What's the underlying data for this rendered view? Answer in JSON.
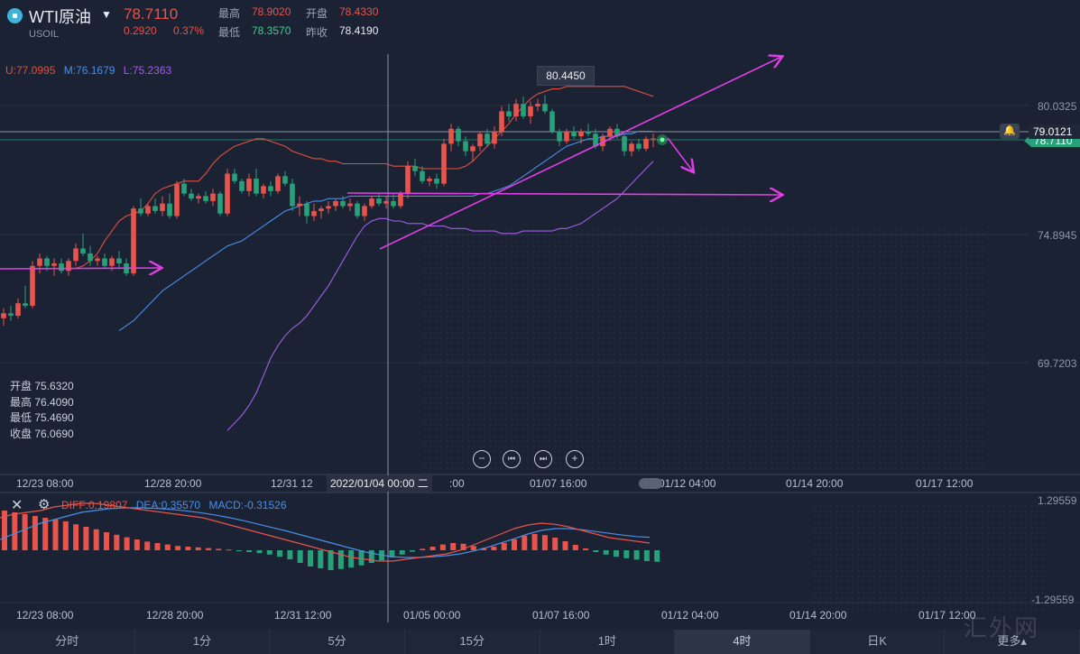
{
  "header": {
    "symbol_name": "WTI原油",
    "symbol_code": "USOIL",
    "price": "78.7110",
    "change": "0.2920",
    "change_pct": "0.37%",
    "high_label": "最高",
    "high_value": "78.9020",
    "open_label": "开盘",
    "open_value": "78.4330",
    "low_label": "最低",
    "low_value": "78.3570",
    "prev_close_label": "昨收",
    "prev_close_value": "78.4190"
  },
  "bollinger": {
    "upper": "U:77.0995",
    "middle": "M:76.1679",
    "lower": "L:75.2363"
  },
  "ohlc_box": {
    "open": "开盘 75.6320",
    "high": "最高 76.4090",
    "low": "最低 75.4690",
    "close": "收盘 76.0690"
  },
  "price_axis": [
    "80.0325",
    "74.8945",
    "69.7203"
  ],
  "current_price_tag": "79.0121",
  "last_price_tag": "78.7110",
  "tooltip_value": "80.4450",
  "crosshair_time": "2022/01/04 00:00 二",
  "time_axis_main": [
    "12/23 08:00",
    "12/28 20:00",
    "12/31 12",
    ":00",
    "01/07 16:00",
    "01/12 04:00",
    "01/14 20:00",
    "01/17 12:00"
  ],
  "time_axis_macd": [
    "12/23 08:00",
    "12/28 20:00",
    "12/31 12:00",
    "01/05 00:00",
    "01/07 16:00",
    "01/12 04:00",
    "01/14 20:00",
    "01/17 12:00"
  ],
  "macd": {
    "diff": "DIFF:0.19807",
    "dea": "DEA:0.35570",
    "macd": "MACD:-0.31526",
    "axis_top": "1.29559",
    "axis_bottom": "-1.29559"
  },
  "controls": {
    "zoom_out": "−",
    "prev": "⏮",
    "next": "⏭",
    "zoom_in": "+"
  },
  "tabs": [
    {
      "label": "分时",
      "active": false
    },
    {
      "label": "1分",
      "active": false
    },
    {
      "label": "5分",
      "active": false
    },
    {
      "label": "15分",
      "active": false
    },
    {
      "label": "1时",
      "active": false
    },
    {
      "label": "4时",
      "active": true
    },
    {
      "label": "日K",
      "active": false
    },
    {
      "label": "更多▴",
      "active": false
    }
  ],
  "watermark": "汇外网",
  "colors": {
    "up": "#e8544b",
    "down": "#26a17a",
    "upper_band": "#e0503f",
    "middle_band": "#4a8fe7",
    "lower_band": "#a25ee6",
    "annotation": "#e23ee6"
  },
  "chart_data": {
    "type": "candlestick",
    "interval": "4时",
    "candles_ohlc": [
      [
        71.5,
        71.9,
        71.2,
        71.7
      ],
      [
        71.7,
        72.0,
        71.4,
        71.6
      ],
      [
        71.6,
        72.3,
        71.5,
        72.1
      ],
      [
        72.1,
        72.8,
        71.9,
        72.0
      ],
      [
        72.0,
        73.8,
        71.9,
        73.6
      ],
      [
        73.6,
        74.1,
        73.3,
        73.9
      ],
      [
        73.9,
        74.0,
        73.4,
        73.6
      ],
      [
        73.6,
        73.9,
        73.2,
        73.7
      ],
      [
        73.7,
        73.9,
        73.3,
        73.4
      ],
      [
        73.4,
        73.9,
        73.2,
        73.8
      ],
      [
        73.8,
        74.5,
        73.6,
        74.3
      ],
      [
        74.3,
        74.9,
        74.0,
        74.1
      ],
      [
        74.1,
        74.4,
        73.6,
        73.8
      ],
      [
        73.8,
        74.0,
        73.6,
        73.9
      ],
      [
        73.9,
        74.1,
        73.5,
        73.6
      ],
      [
        73.6,
        74.0,
        73.4,
        73.9
      ],
      [
        73.9,
        74.2,
        73.5,
        73.7
      ],
      [
        73.7,
        73.9,
        73.2,
        73.3
      ],
      [
        73.3,
        76.0,
        73.2,
        75.9
      ],
      [
        75.9,
        76.3,
        75.6,
        75.7
      ],
      [
        75.7,
        76.1,
        75.6,
        76.0
      ],
      [
        76.0,
        76.3,
        75.7,
        75.8
      ],
      [
        75.8,
        76.4,
        75.6,
        76.1
      ],
      [
        76.1,
        76.5,
        75.5,
        75.6
      ],
      [
        75.6,
        77.0,
        75.5,
        76.9
      ],
      [
        76.9,
        77.1,
        76.4,
        76.5
      ],
      [
        76.5,
        76.7,
        76.2,
        76.3
      ],
      [
        76.3,
        76.5,
        76.1,
        76.4
      ],
      [
        76.4,
        76.6,
        76.1,
        76.2
      ],
      [
        76.2,
        76.7,
        76.0,
        76.5
      ],
      [
        76.5,
        76.6,
        75.6,
        75.7
      ],
      [
        75.7,
        77.5,
        75.6,
        77.3
      ],
      [
        77.3,
        77.5,
        76.9,
        77.0
      ],
      [
        77.0,
        77.1,
        76.5,
        76.6
      ],
      [
        76.6,
        77.3,
        76.4,
        77.1
      ],
      [
        77.1,
        77.5,
        76.4,
        76.5
      ],
      [
        76.5,
        76.9,
        76.3,
        76.8
      ],
      [
        76.8,
        77.0,
        76.4,
        76.6
      ],
      [
        76.6,
        77.3,
        76.5,
        77.2
      ],
      [
        77.2,
        77.4,
        76.8,
        76.9
      ],
      [
        76.9,
        77.1,
        75.8,
        76.0
      ],
      [
        76.0,
        76.4,
        75.6,
        76.1
      ],
      [
        76.1,
        76.2,
        75.3,
        75.6
      ],
      [
        75.6,
        76.1,
        75.4,
        75.8
      ],
      [
        75.8,
        76.0,
        75.5,
        75.9
      ],
      [
        75.9,
        76.2,
        75.7,
        76.0
      ],
      [
        76.0,
        76.3,
        75.8,
        76.2
      ],
      [
        76.2,
        76.4,
        75.9,
        76.0
      ],
      [
        76.0,
        76.3,
        75.8,
        76.1
      ],
      [
        76.1,
        76.2,
        75.5,
        75.6
      ],
      [
        75.6,
        76.1,
        75.4,
        76.0
      ],
      [
        76.0,
        76.4,
        75.9,
        76.3
      ],
      [
        76.3,
        76.5,
        76.0,
        76.1
      ],
      [
        76.1,
        76.4,
        75.9,
        76.2
      ],
      [
        76.2,
        76.5,
        75.9,
        76.0
      ],
      [
        76.0,
        76.6,
        75.9,
        76.5
      ],
      [
        76.5,
        77.8,
        76.3,
        77.6
      ],
      [
        77.6,
        77.9,
        77.2,
        77.4
      ],
      [
        77.4,
        77.6,
        76.9,
        77.0
      ],
      [
        77.0,
        77.2,
        76.8,
        77.1
      ],
      [
        77.1,
        77.3,
        76.7,
        76.9
      ],
      [
        76.9,
        78.7,
        76.8,
        78.5
      ],
      [
        78.5,
        79.3,
        78.2,
        79.1
      ],
      [
        79.1,
        79.2,
        78.4,
        78.6
      ],
      [
        78.6,
        78.8,
        78.0,
        78.2
      ],
      [
        78.2,
        78.5,
        77.8,
        78.4
      ],
      [
        78.4,
        79.0,
        78.2,
        78.9
      ],
      [
        78.9,
        79.1,
        78.4,
        78.5
      ],
      [
        78.5,
        79.2,
        78.3,
        79.0
      ],
      [
        79.0,
        80.0,
        78.8,
        79.8
      ],
      [
        79.8,
        80.1,
        79.4,
        79.6
      ],
      [
        79.6,
        80.3,
        79.4,
        80.1
      ],
      [
        80.1,
        80.4,
        79.5,
        79.6
      ],
      [
        79.6,
        80.2,
        79.3,
        80.0
      ],
      [
        80.0,
        80.3,
        79.8,
        80.1
      ],
      [
        80.1,
        80.45,
        79.7,
        79.8
      ],
      [
        79.8,
        79.9,
        78.9,
        79.0
      ],
      [
        79.0,
        79.1,
        78.4,
        78.6
      ],
      [
        78.6,
        79.1,
        78.5,
        79.0
      ],
      [
        79.0,
        79.2,
        78.7,
        78.8
      ],
      [
        78.8,
        79.1,
        78.5,
        79.0
      ],
      [
        79.0,
        79.3,
        78.8,
        78.9
      ],
      [
        78.9,
        79.1,
        78.3,
        78.4
      ],
      [
        78.4,
        78.9,
        78.2,
        78.8
      ],
      [
        78.8,
        79.2,
        78.6,
        79.1
      ],
      [
        79.1,
        79.3,
        78.7,
        78.8
      ],
      [
        78.8,
        78.9,
        78.0,
        78.2
      ],
      [
        78.2,
        78.6,
        78.0,
        78.5
      ],
      [
        78.5,
        78.7,
        78.2,
        78.3
      ],
      [
        78.3,
        78.8,
        78.2,
        78.7
      ],
      [
        78.7,
        78.9,
        78.36,
        78.71
      ]
    ],
    "upper_band": [
      73.5,
      73.6,
      73.8,
      74.1,
      74.6,
      75.0,
      75.4,
      75.6,
      75.7,
      75.8,
      76.1,
      76.5,
      76.7,
      76.8,
      76.9,
      77.0,
      77.0,
      77.0,
      77.3,
      77.7,
      78.0,
      78.2,
      78.4,
      78.5,
      78.6,
      78.7,
      78.7,
      78.6,
      78.5,
      78.4,
      78.2,
      78.1,
      78.0,
      77.9,
      77.9,
      77.8,
      77.8,
      77.7,
      77.7,
      77.7,
      77.7,
      77.7,
      77.7,
      77.7,
      77.6,
      77.6,
      77.6,
      77.6,
      77.5,
      77.5,
      77.5,
      77.5,
      77.5,
      77.5,
      77.6,
      77.8,
      78.1,
      78.4,
      78.7,
      79.0,
      79.3,
      79.7,
      80.0,
      80.3,
      80.5,
      80.6,
      80.7,
      80.7,
      80.8,
      80.8,
      80.8,
      80.8,
      80.8,
      80.8,
      80.8,
      80.8,
      80.8,
      80.7,
      80.6,
      80.5,
      80.4
    ],
    "middle_band": [
      71.0,
      71.2,
      71.4,
      71.7,
      72.0,
      72.3,
      72.6,
      72.8,
      73.0,
      73.2,
      73.4,
      73.6,
      73.8,
      74.0,
      74.2,
      74.4,
      74.5,
      74.6,
      74.8,
      75.0,
      75.2,
      75.4,
      75.6,
      75.8,
      75.9,
      76.0,
      76.1,
      76.2,
      76.2,
      76.3,
      76.3,
      76.3,
      76.4,
      76.4,
      76.4,
      76.4,
      76.4,
      76.4,
      76.4,
      76.4,
      76.4,
      76.4,
      76.4,
      76.4,
      76.4,
      76.4,
      76.4,
      76.4,
      76.4,
      76.4,
      76.5,
      76.5,
      76.6,
      76.7,
      76.8,
      77.0,
      77.2,
      77.4,
      77.6,
      77.8,
      78.0,
      78.2,
      78.4,
      78.5,
      78.6,
      78.7,
      78.7,
      78.8,
      78.8,
      78.8,
      78.9,
      78.9,
      79.0,
      79.0,
      79.0
    ],
    "lower_band": [
      67.0,
      67.3,
      67.6,
      68.0,
      68.5,
      69.2,
      69.9,
      70.4,
      70.8,
      71.1,
      71.3,
      71.6,
      72.0,
      72.4,
      72.8,
      73.3,
      73.8,
      74.3,
      74.8,
      75.2,
      75.4,
      75.5,
      75.5,
      75.4,
      75.4,
      75.3,
      75.3,
      75.3,
      75.2,
      75.2,
      75.2,
      75.1,
      75.1,
      75.1,
      75.0,
      75.0,
      75.0,
      75.0,
      74.9,
      74.9,
      74.9,
      75.0,
      75.0,
      75.0,
      75.0,
      75.0,
      75.1,
      75.1,
      75.2,
      75.3,
      75.5,
      75.7,
      75.9,
      76.1,
      76.3,
      76.6,
      76.9,
      77.2,
      77.5,
      77.8
    ],
    "diff": [
      0.9,
      1.0,
      1.05,
      1.1,
      1.2,
      1.25,
      1.3,
      1.3,
      1.25,
      1.2,
      1.15,
      1.1,
      1.05,
      1.0,
      0.95,
      0.9,
      0.8,
      0.7,
      0.6,
      0.5,
      0.4,
      0.3,
      0.2,
      0.1,
      0.0,
      -0.1,
      -0.2,
      -0.25,
      -0.3,
      -0.3,
      -0.25,
      -0.2,
      -0.15,
      -0.1,
      0.0,
      0.15,
      0.3,
      0.45,
      0.6,
      0.7,
      0.75,
      0.72,
      0.65,
      0.55,
      0.45,
      0.35,
      0.3,
      0.25,
      0.2
    ],
    "dea": [
      0.3,
      0.45,
      0.6,
      0.75,
      0.85,
      0.95,
      1.05,
      1.1,
      1.15,
      1.17,
      1.18,
      1.17,
      1.15,
      1.12,
      1.08,
      1.03,
      0.97,
      0.9,
      0.82,
      0.73,
      0.64,
      0.55,
      0.45,
      0.35,
      0.25,
      0.15,
      0.05,
      -0.05,
      -0.12,
      -0.18,
      -0.2,
      -0.2,
      -0.18,
      -0.15,
      -0.1,
      -0.02,
      0.08,
      0.2,
      0.32,
      0.45,
      0.55,
      0.6,
      0.6,
      0.57,
      0.52,
      0.47,
      0.42,
      0.38,
      0.36
    ],
    "macd_hist": [
      1.1,
      1.05,
      1.0,
      0.95,
      0.9,
      0.85,
      0.8,
      0.72,
      0.65,
      0.58,
      0.5,
      0.43,
      0.36,
      0.3,
      0.24,
      0.2,
      0.16,
      0.12,
      0.1,
      0.08,
      0.06,
      0.04,
      0.02,
      -0.02,
      -0.05,
      -0.08,
      -0.12,
      -0.18,
      -0.25,
      -0.35,
      -0.45,
      -0.5,
      -0.55,
      -0.52,
      -0.48,
      -0.42,
      -0.35,
      -0.28,
      -0.2,
      -0.12,
      -0.04,
      0.04,
      0.1,
      0.16,
      0.2,
      0.18,
      0.12,
      0.06,
      0.1,
      0.2,
      0.3,
      0.4,
      0.45,
      0.42,
      0.35,
      0.25,
      0.15,
      0.05,
      -0.05,
      -0.12,
      -0.18,
      -0.22,
      -0.26,
      -0.3,
      -0.32
    ]
  }
}
